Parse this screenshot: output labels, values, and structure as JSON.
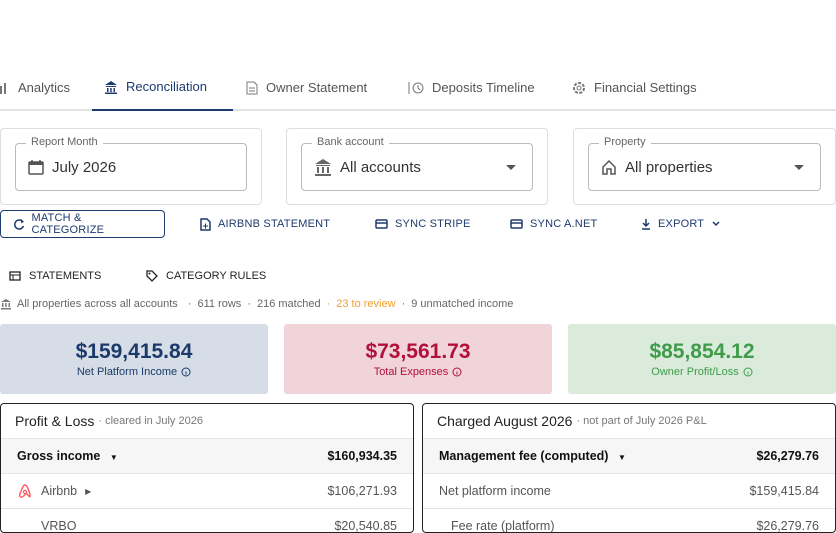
{
  "tabs": [
    "Analytics",
    "Reconciliation",
    "Owner Statement",
    "Deposits Timeline",
    "Financial Settings"
  ],
  "filters": [
    {
      "label": "Report Month",
      "value": "July 2026"
    },
    {
      "label": "Bank account",
      "value": "All accounts"
    },
    {
      "label": "Property",
      "value": "All properties"
    }
  ],
  "actions": [
    "MATCH & CATEGORIZE",
    "AIRBNB STATEMENT",
    "SYNC STRIPE",
    "SYNC A.NET",
    "EXPORT"
  ],
  "subtabs": [
    "STATEMENTS",
    "CATEGORY RULES"
  ],
  "status": {
    "scope": "All properties across all accounts",
    "rows": "611 rows",
    "matched": "216 matched",
    "review": "23 to review",
    "unmatched": "9 unmatched income"
  },
  "cards": [
    {
      "value": "$159,415.84",
      "label": "Net Platform Income"
    },
    {
      "value": "$73,561.73",
      "label": "Total Expenses"
    },
    {
      "value": "$85,854.12",
      "label": "Owner Profit/Loss"
    }
  ],
  "panels": [
    {
      "title": "Profit & Loss",
      "note": "· cleared in July 2026",
      "rows": [
        [
          "Gross income",
          "$160,934.35"
        ],
        [
          "Airbnb",
          "$106,271.93"
        ],
        [
          "VRBO",
          "$20,540.85"
        ]
      ]
    },
    {
      "title": "Charged August 2026",
      "note": "· not part of July 2026 P&L",
      "rows": [
        [
          "Management fee (computed)",
          "$26,279.76"
        ],
        [
          "Net platform income",
          "$159,415.84"
        ],
        [
          "Fee rate (platform)",
          "$26,279.76"
        ]
      ]
    }
  ]
}
